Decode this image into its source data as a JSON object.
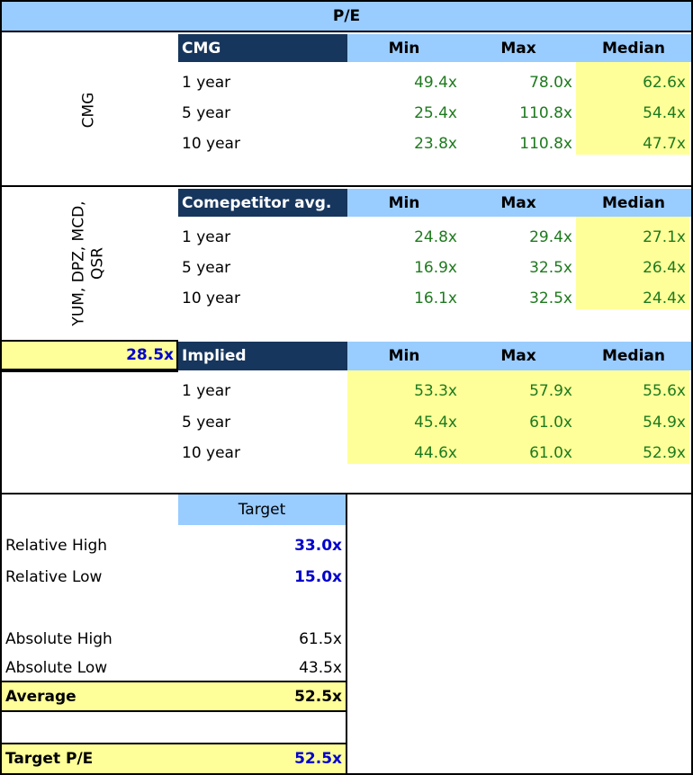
{
  "title": "P/E",
  "cmg": {
    "side_label": "CMG",
    "header": "CMG",
    "cols": [
      "Min",
      "Max",
      "Median"
    ],
    "rows": [
      {
        "label": "1 year",
        "min": "49.4x",
        "max": "78.0x",
        "median": "62.6x"
      },
      {
        "label": "5 year",
        "min": "25.4x",
        "max": "110.8x",
        "median": "54.4x"
      },
      {
        "label": "10 year",
        "min": "23.8x",
        "max": "110.8x",
        "median": "47.7x"
      }
    ]
  },
  "comp": {
    "side_label_line1": "YUM, DPZ, MCD,",
    "side_label_line2": "QSR",
    "header": "Comepetitor avg.",
    "cols": [
      "Min",
      "Max",
      "Median"
    ],
    "rows": [
      {
        "label": "1 year",
        "min": "24.8x",
        "max": "29.4x",
        "median": "27.1x"
      },
      {
        "label": "5 year",
        "min": "16.9x",
        "max": "32.5x",
        "median": "26.4x"
      },
      {
        "label": "10 year",
        "min": "16.1x",
        "max": "32.5x",
        "median": "24.4x"
      }
    ]
  },
  "implied": {
    "input_value": "28.5x",
    "header": "Implied",
    "cols": [
      "Min",
      "Max",
      "Median"
    ],
    "rows": [
      {
        "label": "1 year",
        "min": "53.3x",
        "max": "57.9x",
        "median": "55.6x"
      },
      {
        "label": "5 year",
        "min": "45.4x",
        "max": "61.0x",
        "median": "54.9x"
      },
      {
        "label": "10 year",
        "min": "44.6x",
        "max": "61.0x",
        "median": "52.9x"
      }
    ]
  },
  "target": {
    "header": "Target",
    "relative_high": {
      "label": "Relative High",
      "value": "33.0x"
    },
    "relative_low": {
      "label": "Relative Low",
      "value": "15.0x"
    },
    "absolute_high": {
      "label": "Absolute High",
      "value": "61.5x"
    },
    "absolute_low": {
      "label": "Absolute Low",
      "value": "43.5x"
    },
    "average": {
      "label": "Average",
      "value": "52.5x"
    },
    "target_pe": {
      "label": "Target P/E",
      "value": "52.5x"
    }
  },
  "colors": {
    "header_dark": "#17365d",
    "header_light": "#99ccff",
    "highlight": "#ffff99",
    "value_green": "#1e7a1e",
    "value_blue": "#0000cc"
  }
}
